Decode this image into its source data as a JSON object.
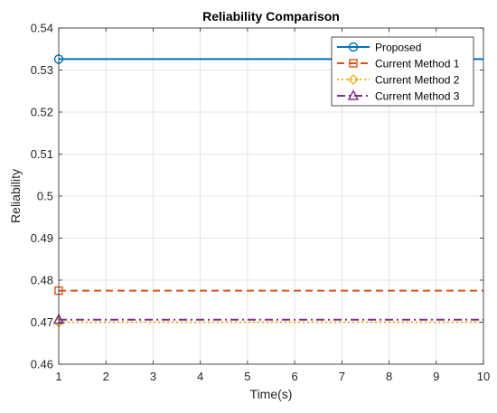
{
  "chart_data": {
    "type": "line",
    "title": "Reliability Comparison",
    "xlabel": "Time(s)",
    "ylabel": "Reliability",
    "xlim": [
      1,
      10
    ],
    "ylim": [
      0.46,
      0.54
    ],
    "xticks": [
      1,
      2,
      3,
      4,
      5,
      6,
      7,
      8,
      9,
      10
    ],
    "yticks": [
      0.46,
      0.47,
      0.48,
      0.49,
      0.5,
      0.51,
      0.52,
      0.53,
      0.54
    ],
    "ytick_labels": [
      "0.46",
      "0.47",
      "0.48",
      "0.49",
      "0.5",
      "0.51",
      "0.52",
      "0.53",
      "0.54"
    ],
    "grid": true,
    "legend_position": "top-right",
    "series": [
      {
        "name": "Proposed",
        "x": [
          1,
          10
        ],
        "values": [
          0.5326,
          0.5326
        ],
        "color": "#0072BD",
        "dash": "solid",
        "marker": "circle"
      },
      {
        "name": "Current Method 1",
        "x": [
          1,
          10
        ],
        "values": [
          0.4775,
          0.4775
        ],
        "color": "#D95319",
        "dash": "dashed",
        "marker": "square"
      },
      {
        "name": "Current Method 2",
        "x": [
          1,
          10
        ],
        "values": [
          0.47,
          0.47
        ],
        "color": "#EDB120",
        "dash": "dotted",
        "marker": "diamond"
      },
      {
        "name": "Current Method 3",
        "x": [
          1,
          10
        ],
        "values": [
          0.4706,
          0.4706
        ],
        "color": "#7E2F8E",
        "dash": "dashdot",
        "marker": "triangle"
      }
    ]
  }
}
